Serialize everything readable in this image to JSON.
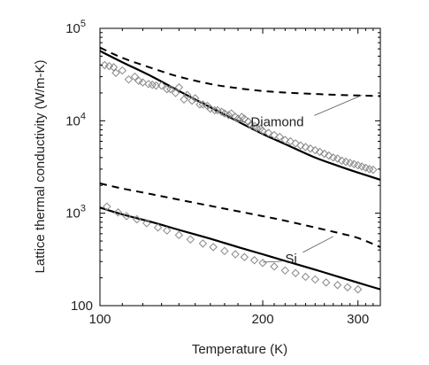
{
  "chart_data": {
    "type": "line",
    "title": "",
    "xlabel": "Temperature (K)",
    "ylabel": "Lattice thermal conductivity (W/m-K)",
    "xscale": "log",
    "yscale": "log",
    "xlim": [
      100,
      330
    ],
    "ylim": [
      100,
      100000
    ],
    "x_ticks": [
      {
        "value": 100,
        "label": "100"
      },
      {
        "value": 200,
        "label": "200"
      },
      {
        "value": 300,
        "label": "300"
      }
    ],
    "y_ticks": [
      {
        "value": 100,
        "label": "100"
      },
      {
        "value": 1000,
        "label": "10",
        "exp": "3"
      },
      {
        "value": 10000,
        "label": "10",
        "exp": "4"
      },
      {
        "value": 100000,
        "label": "10",
        "exp": "5"
      }
    ],
    "grid": false,
    "colors": {
      "curve": "#000000",
      "marker": "#888888"
    },
    "series": [
      {
        "style": "solid",
        "x": [
          100,
          110,
          125,
          140,
          160,
          180,
          200,
          220,
          250,
          280,
          300,
          330
        ],
        "y": [
          57000,
          43000,
          30000,
          21000,
          14000,
          9800,
          7200,
          5600,
          4000,
          3150,
          2750,
          2300
        ]
      },
      {
        "style": "dashed",
        "x": [
          100,
          110,
          125,
          140,
          160,
          180,
          200,
          220,
          250,
          280,
          300,
          330
        ],
        "y": [
          62000,
          48000,
          37000,
          30000,
          25000,
          22500,
          21000,
          20200,
          19500,
          19000,
          18800,
          18500
        ]
      },
      {
        "style": "solid",
        "x": [
          100,
          110,
          125,
          140,
          160,
          180,
          200,
          220,
          250,
          280,
          300,
          330
        ],
        "y": [
          1150,
          970,
          800,
          660,
          530,
          430,
          360,
          305,
          245,
          200,
          177,
          150
        ]
      },
      {
        "style": "dashed",
        "x": [
          100,
          110,
          125,
          140,
          160,
          180,
          200,
          220,
          250,
          280,
          300,
          330
        ],
        "y": [
          2100,
          1850,
          1600,
          1400,
          1200,
          1050,
          930,
          830,
          700,
          600,
          540,
          430
        ]
      },
      {
        "style": "markers",
        "marker": "diamond",
        "x": [
          102,
          104,
          106,
          107,
          110,
          113,
          116,
          118,
          120,
          123,
          125,
          127,
          130,
          133,
          135,
          138,
          140,
          143,
          145,
          148,
          150,
          153,
          155,
          158,
          160,
          163,
          165,
          168,
          170,
          173,
          175,
          178,
          180,
          183,
          185,
          188,
          190,
          193,
          195,
          198,
          200,
          205,
          210,
          215,
          220,
          225,
          230,
          235,
          240,
          245,
          250,
          255,
          260,
          265,
          270,
          275,
          280,
          285,
          290,
          295,
          300,
          305,
          310,
          315,
          320
        ],
        "y": [
          40000,
          39000,
          38000,
          33000,
          35000,
          28000,
          30000,
          27000,
          26000,
          25000,
          24500,
          24000,
          24000,
          22000,
          22000,
          20000,
          23000,
          17000,
          19000,
          16500,
          17500,
          15000,
          15000,
          14500,
          13500,
          13000,
          13000,
          12500,
          12000,
          11500,
          12000,
          11000,
          10500,
          11000,
          10500,
          9800,
          9000,
          8800,
          8400,
          8200,
          7800,
          7400,
          7000,
          6700,
          6200,
          6000,
          5700,
          5400,
          5200,
          5000,
          4800,
          4600,
          4400,
          4200,
          4000,
          3900,
          3700,
          3600,
          3500,
          3400,
          3300,
          3200,
          3100,
          3000,
          2950
        ]
      },
      {
        "style": "markers",
        "marker": "diamond",
        "x": [
          103,
          108,
          112,
          117,
          122,
          128,
          133,
          140,
          147,
          155,
          162,
          170,
          178,
          185,
          193,
          200,
          210,
          220,
          230,
          240,
          250,
          262,
          275,
          287,
          300
        ],
        "y": [
          1180,
          1020,
          930,
          860,
          780,
          700,
          650,
          580,
          520,
          470,
          430,
          390,
          360,
          335,
          310,
          290,
          265,
          240,
          225,
          205,
          192,
          178,
          167,
          158,
          150
        ]
      }
    ],
    "annotations": [
      {
        "text": "Diamond",
        "x": 190,
        "y": 10000
      },
      {
        "text": "Si",
        "x": 220,
        "y": 330
      }
    ]
  }
}
